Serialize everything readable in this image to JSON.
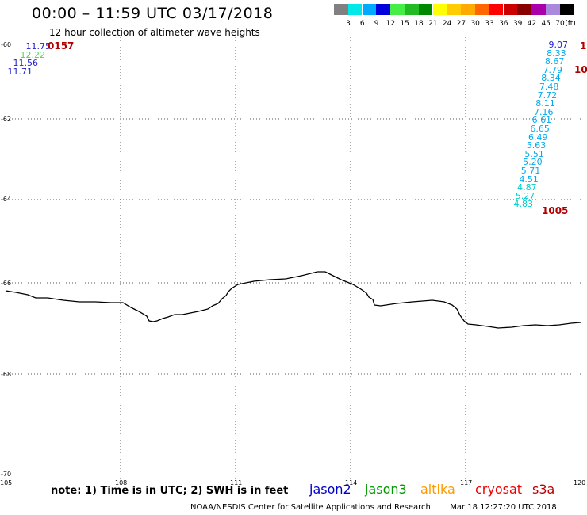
{
  "header": {
    "title": "00:00 – 11:59 UTC 03/17/2018",
    "subtitle": "12 hour collection of altimeter wave heights"
  },
  "scale": {
    "unit": "(ft)",
    "colors": [
      "#808080",
      "#00e8e8",
      "#00aaff",
      "#0000dd",
      "#44ee44",
      "#22bb22",
      "#008800",
      "#ffff00",
      "#ffcc00",
      "#ffaa00",
      "#ff6600",
      "#ff0000",
      "#cc0000",
      "#880000",
      "#aa00aa",
      "#aa88dd",
      "#000000"
    ],
    "labels": [
      "3",
      "6",
      "9",
      "12",
      "15",
      "18",
      "21",
      "24",
      "27",
      "30",
      "33",
      "36",
      "39",
      "42",
      "45",
      "70"
    ]
  },
  "axes": {
    "lon_labels": [
      "105",
      "108",
      "111",
      "114",
      "117",
      "120"
    ],
    "lat_labels": [
      "-60",
      "-62",
      "-64",
      "-66",
      "-68",
      "-70"
    ]
  },
  "left_track": {
    "time": "0157",
    "values": [
      {
        "v": "11.75",
        "color": "#2222cc"
      },
      {
        "v": "12.22",
        "color": "#44dd44"
      },
      {
        "v": "11.56",
        "color": "#2222cc"
      },
      {
        "v": "11.71",
        "color": "#2222cc"
      }
    ]
  },
  "right_track": {
    "time_top": "1",
    "time_mid": "10",
    "time_bottom": "1005",
    "values": [
      "9.07",
      "8.33",
      "8.67",
      "7.79",
      "8.34",
      "7.48",
      "7.72",
      "8.11",
      "7.16",
      "6.61",
      "6.65",
      "6.49",
      "5.63",
      "5.51",
      "5.20",
      "5.71",
      "4.51",
      "4.87",
      "5.27",
      "4.83"
    ]
  },
  "footer": {
    "note": "note: 1) Time is in UTC; 2) SWH is in feet",
    "satellites": [
      {
        "name": "jason2",
        "color": "#0000cc"
      },
      {
        "name": "jason3",
        "color": "#009900"
      },
      {
        "name": "altika",
        "color": "#ff9900"
      },
      {
        "name": "cryosat",
        "color": "#ee0000"
      },
      {
        "name": "s3a",
        "color": "#bb0000"
      }
    ],
    "credit": "NOAA/NESDIS Center for Satellite Applications and Research",
    "timestamp": "Mar 18 12:27:20 UTC 2018"
  }
}
